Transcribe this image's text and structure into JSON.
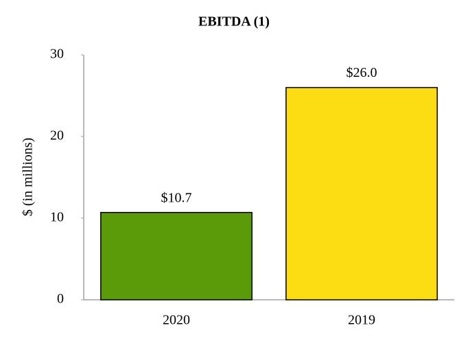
{
  "chart_data": {
    "type": "bar",
    "title": "EBITDA (1)",
    "y_label": "$ (in millions)",
    "categories": [
      "2020",
      "2019"
    ],
    "values": [
      10.7,
      26.0
    ],
    "value_labels": [
      "$10.7",
      "$26.0"
    ],
    "colors": [
      "#5b9a08",
      "#fcdc12"
    ],
    "ylim": [
      0,
      30
    ],
    "yticks": [
      0,
      10,
      20,
      30
    ],
    "grid": false
  }
}
